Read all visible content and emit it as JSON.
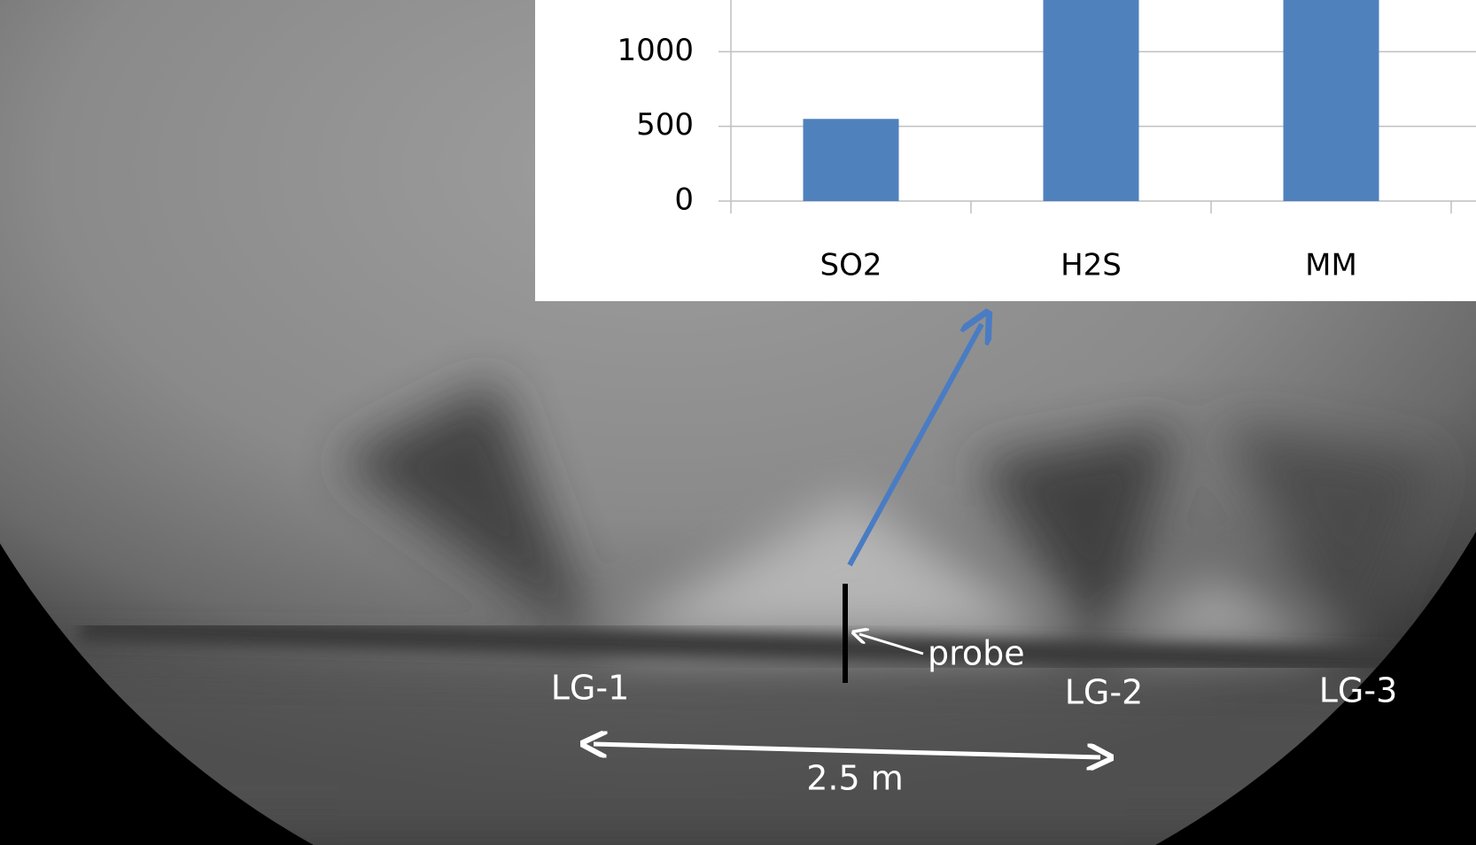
{
  "chart_data": {
    "type": "bar",
    "categories": [
      "SO2",
      "H2S",
      "MM"
    ],
    "values": [
      550,
      1346,
      1346
    ],
    "color": "#4f81bd",
    "ylim": [
      0,
      1346
    ],
    "yticks": [
      0,
      500,
      1000
    ],
    "grid": true,
    "annotations": [
      "probe",
      "LG-1",
      "LG-2",
      "LG-3",
      "2.5 m"
    ]
  }
}
